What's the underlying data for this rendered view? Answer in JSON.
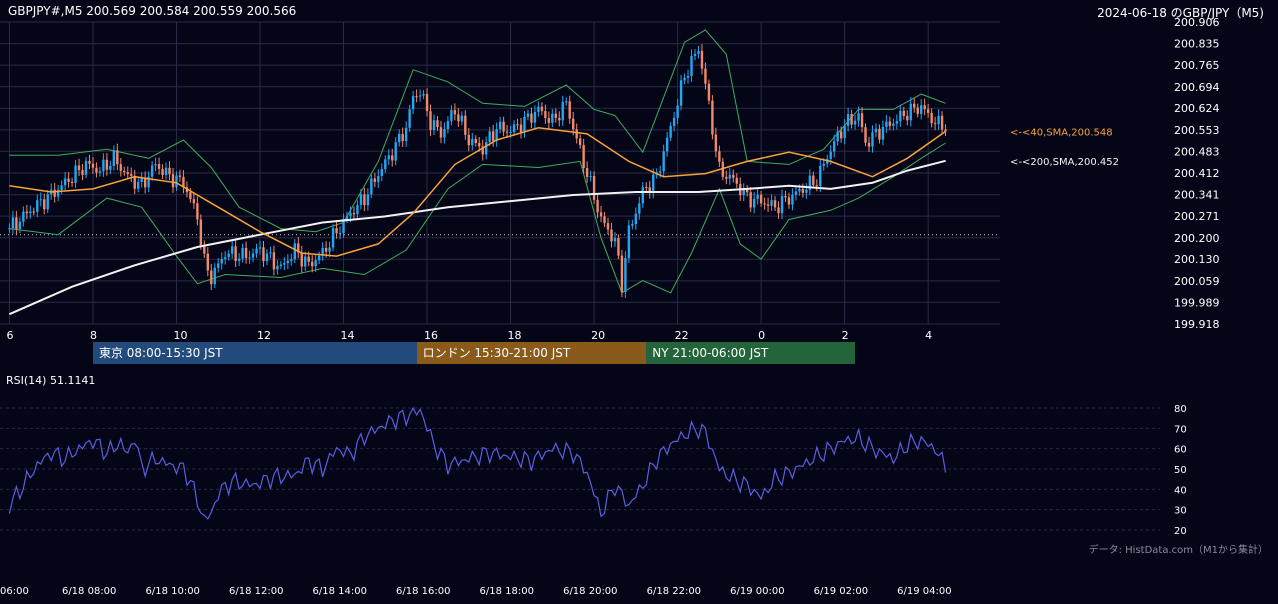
{
  "header": {
    "ohlc": "GBPJPY#,M5 200.569 200.584 200.559 200.566",
    "title": "2024-06-18 のGBP/JPY（M5)"
  },
  "colors": {
    "background": "#050518",
    "grid": "#2a2a44",
    "up_candle": "#22a7f0",
    "down_candle": "#f08a6a",
    "bollinger": "#3fae5a",
    "sma40": "#f7a23a",
    "sma200": "#f2f2f2",
    "rsi": "#5a5ee0",
    "tokyo": "#224a7a",
    "london": "#8a5a1a",
    "ny": "#23643a"
  },
  "sessions": [
    {
      "label": "東京 08:00-15:30 JST",
      "start": 2,
      "end": 95
    },
    {
      "label": "ロンドン 15:30-21:00 JST",
      "start": 95,
      "end": 161
    },
    {
      "label": "NY 21:00-06:00 JST",
      "start": 161,
      "end": 221
    }
  ],
  "rsi_label": "RSI(14) 51.1141",
  "source_note": "データ: HistData.com（M1から集計）",
  "chart_data": {
    "type": "candlestick",
    "x_tick_labels": [
      "6",
      "8",
      "10",
      "12",
      "14",
      "16",
      "18",
      "20",
      "22",
      "0",
      "2",
      "4"
    ],
    "x_tick_bars": [
      -22,
      2,
      26,
      50,
      74,
      98,
      122,
      146,
      170,
      194,
      218,
      242
    ],
    "date_tick_labels": [
      "06:00",
      "6/18 08:00",
      "6/18 10:00",
      "6/18 12:00",
      "6/18 14:00",
      "6/18 16:00",
      "6/18 18:00",
      "6/18 20:00",
      "6/18 22:00",
      "6/19 00:00",
      "6/19 02:00",
      "6/19 04:00"
    ],
    "y_ticks": [
      199.918,
      199.989,
      200.059,
      200.13,
      200.2,
      200.271,
      200.341,
      200.412,
      200.483,
      200.553,
      200.624,
      200.694,
      200.765,
      200.835,
      200.906
    ],
    "ylim": [
      199.918,
      200.906
    ],
    "reference_line": 200.21,
    "price_anchors": [
      [
        -22,
        200.23
      ],
      [
        -16,
        200.29
      ],
      [
        -10,
        200.34
      ],
      [
        -4,
        200.4
      ],
      [
        0,
        200.44
      ],
      [
        4,
        200.42
      ],
      [
        8,
        200.46
      ],
      [
        12,
        200.4
      ],
      [
        16,
        200.37
      ],
      [
        20,
        200.44
      ],
      [
        24,
        200.4
      ],
      [
        28,
        200.38
      ],
      [
        32,
        200.27
      ],
      [
        34,
        200.12
      ],
      [
        36,
        200.07
      ],
      [
        40,
        200.15
      ],
      [
        46,
        200.14
      ],
      [
        50,
        200.16
      ],
      [
        56,
        200.1
      ],
      [
        60,
        200.16
      ],
      [
        64,
        200.11
      ],
      [
        68,
        200.15
      ],
      [
        72,
        200.22
      ],
      [
        76,
        200.28
      ],
      [
        80,
        200.33
      ],
      [
        84,
        200.41
      ],
      [
        88,
        200.48
      ],
      [
        92,
        200.56
      ],
      [
        94,
        200.66
      ],
      [
        96,
        200.68
      ],
      [
        99,
        200.58
      ],
      [
        102,
        200.54
      ],
      [
        106,
        200.62
      ],
      [
        110,
        200.52
      ],
      [
        114,
        200.49
      ],
      [
        118,
        200.56
      ],
      [
        122,
        200.55
      ],
      [
        126,
        200.58
      ],
      [
        130,
        200.62
      ],
      [
        134,
        200.58
      ],
      [
        138,
        200.64
      ],
      [
        140,
        200.56
      ],
      [
        144,
        200.41
      ],
      [
        148,
        200.26
      ],
      [
        152,
        200.19
      ],
      [
        154,
        200.05
      ],
      [
        156,
        200.22
      ],
      [
        160,
        200.35
      ],
      [
        164,
        200.4
      ],
      [
        168,
        200.56
      ],
      [
        172,
        200.73
      ],
      [
        176,
        200.82
      ],
      [
        178,
        200.7
      ],
      [
        182,
        200.42
      ],
      [
        186,
        200.39
      ],
      [
        190,
        200.33
      ],
      [
        194,
        200.32
      ],
      [
        198,
        200.3
      ],
      [
        202,
        200.33
      ],
      [
        206,
        200.36
      ],
      [
        210,
        200.39
      ],
      [
        214,
        200.49
      ],
      [
        218,
        200.57
      ],
      [
        222,
        200.6
      ],
      [
        224,
        200.51
      ],
      [
        228,
        200.55
      ],
      [
        232,
        200.58
      ],
      [
        236,
        200.61
      ],
      [
        240,
        200.63
      ],
      [
        242,
        200.6
      ],
      [
        245,
        200.57
      ],
      [
        247,
        200.566
      ]
    ],
    "sma40_points": [
      [
        -22,
        200.37
      ],
      [
        -10,
        200.35
      ],
      [
        2,
        200.36
      ],
      [
        14,
        200.4
      ],
      [
        26,
        200.38
      ],
      [
        38,
        200.3
      ],
      [
        50,
        200.22
      ],
      [
        62,
        200.15
      ],
      [
        72,
        200.14
      ],
      [
        84,
        200.18
      ],
      [
        94,
        200.28
      ],
      [
        106,
        200.44
      ],
      [
        118,
        200.52
      ],
      [
        130,
        200.56
      ],
      [
        144,
        200.54
      ],
      [
        156,
        200.45
      ],
      [
        166,
        200.4
      ],
      [
        178,
        200.41
      ],
      [
        190,
        200.45
      ],
      [
        202,
        200.48
      ],
      [
        214,
        200.45
      ],
      [
        226,
        200.4
      ],
      [
        236,
        200.46
      ],
      [
        247,
        200.548
      ]
    ],
    "sma200_points": [
      [
        -22,
        199.95
      ],
      [
        -4,
        200.04
      ],
      [
        14,
        200.11
      ],
      [
        32,
        200.17
      ],
      [
        50,
        200.21
      ],
      [
        68,
        200.25
      ],
      [
        86,
        200.27
      ],
      [
        104,
        200.3
      ],
      [
        122,
        200.32
      ],
      [
        140,
        200.34
      ],
      [
        158,
        200.35
      ],
      [
        176,
        200.35
      ],
      [
        190,
        200.36
      ],
      [
        202,
        200.37
      ],
      [
        214,
        200.36
      ],
      [
        226,
        200.38
      ],
      [
        236,
        200.42
      ],
      [
        247,
        200.452
      ]
    ],
    "bollinger_upper": [
      [
        -22,
        200.47
      ],
      [
        -8,
        200.47
      ],
      [
        6,
        200.49
      ],
      [
        18,
        200.46
      ],
      [
        28,
        200.52
      ],
      [
        36,
        200.43
      ],
      [
        44,
        200.3
      ],
      [
        56,
        200.23
      ],
      [
        66,
        200.22
      ],
      [
        74,
        200.25
      ],
      [
        84,
        200.45
      ],
      [
        94,
        200.75
      ],
      [
        104,
        200.71
      ],
      [
        114,
        200.64
      ],
      [
        126,
        200.63
      ],
      [
        138,
        200.7
      ],
      [
        146,
        200.62
      ],
      [
        152,
        200.6
      ],
      [
        160,
        200.48
      ],
      [
        166,
        200.66
      ],
      [
        172,
        200.84
      ],
      [
        178,
        200.88
      ],
      [
        184,
        200.8
      ],
      [
        190,
        200.45
      ],
      [
        202,
        200.44
      ],
      [
        212,
        200.49
      ],
      [
        222,
        200.62
      ],
      [
        232,
        200.62
      ],
      [
        240,
        200.67
      ],
      [
        247,
        200.64
      ]
    ],
    "bollinger_lower": [
      [
        -22,
        200.23
      ],
      [
        -8,
        200.21
      ],
      [
        6,
        200.33
      ],
      [
        16,
        200.3
      ],
      [
        26,
        200.14
      ],
      [
        32,
        200.05
      ],
      [
        40,
        200.08
      ],
      [
        56,
        200.07
      ],
      [
        68,
        200.1
      ],
      [
        80,
        200.08
      ],
      [
        92,
        200.16
      ],
      [
        104,
        200.36
      ],
      [
        114,
        200.44
      ],
      [
        130,
        200.43
      ],
      [
        142,
        200.45
      ],
      [
        148,
        200.2
      ],
      [
        154,
        200.02
      ],
      [
        160,
        200.06
      ],
      [
        168,
        200.02
      ],
      [
        174,
        200.15
      ],
      [
        182,
        200.36
      ],
      [
        188,
        200.18
      ],
      [
        194,
        200.13
      ],
      [
        202,
        200.26
      ],
      [
        214,
        200.29
      ],
      [
        222,
        200.33
      ],
      [
        232,
        200.4
      ],
      [
        240,
        200.46
      ],
      [
        247,
        200.51
      ]
    ],
    "annotations": [
      {
        "text": "<-<40,SMA,200.548",
        "y": 200.548,
        "color": "#f7a23a"
      },
      {
        "text": "<-<200,SMA,200.452",
        "y": 200.452,
        "color": "#f2f2f2"
      }
    ],
    "rsi": {
      "y_ticks": [
        20,
        30,
        40,
        50,
        60,
        70,
        80
      ],
      "ylim": [
        20,
        80
      ],
      "anchors": [
        [
          -22,
          32
        ],
        [
          -18,
          42
        ],
        [
          -14,
          52
        ],
        [
          -10,
          58
        ],
        [
          -6,
          55
        ],
        [
          -2,
          60
        ],
        [
          2,
          64
        ],
        [
          6,
          58
        ],
        [
          10,
          63
        ],
        [
          12,
          57
        ],
        [
          14,
          66
        ],
        [
          16,
          50
        ],
        [
          20,
          55
        ],
        [
          24,
          52
        ],
        [
          28,
          50
        ],
        [
          30,
          44
        ],
        [
          34,
          25
        ],
        [
          36,
          28
        ],
        [
          38,
          38
        ],
        [
          42,
          44
        ],
        [
          48,
          42
        ],
        [
          54,
          46
        ],
        [
          60,
          47
        ],
        [
          64,
          54
        ],
        [
          68,
          50
        ],
        [
          72,
          60
        ],
        [
          76,
          57
        ],
        [
          80,
          66
        ],
        [
          84,
          70
        ],
        [
          88,
          74
        ],
        [
          92,
          76
        ],
        [
          96,
          79
        ],
        [
          100,
          62
        ],
        [
          104,
          52
        ],
        [
          110,
          55
        ],
        [
          116,
          58
        ],
        [
          122,
          56
        ],
        [
          128,
          54
        ],
        [
          134,
          60
        ],
        [
          140,
          58
        ],
        [
          144,
          48
        ],
        [
          148,
          28
        ],
        [
          152,
          42
        ],
        [
          156,
          32
        ],
        [
          160,
          42
        ],
        [
          164,
          55
        ],
        [
          168,
          62
        ],
        [
          172,
          67
        ],
        [
          176,
          70
        ],
        [
          178,
          68
        ],
        [
          182,
          50
        ],
        [
          186,
          45
        ],
        [
          190,
          42
        ],
        [
          194,
          36
        ],
        [
          198,
          45
        ],
        [
          202,
          48
        ],
        [
          206,
          52
        ],
        [
          210,
          56
        ],
        [
          214,
          60
        ],
        [
          218,
          64
        ],
        [
          222,
          65
        ],
        [
          226,
          60
        ],
        [
          232,
          55
        ],
        [
          236,
          62
        ],
        [
          240,
          64
        ],
        [
          244,
          60
        ],
        [
          247,
          51
        ]
      ]
    }
  }
}
